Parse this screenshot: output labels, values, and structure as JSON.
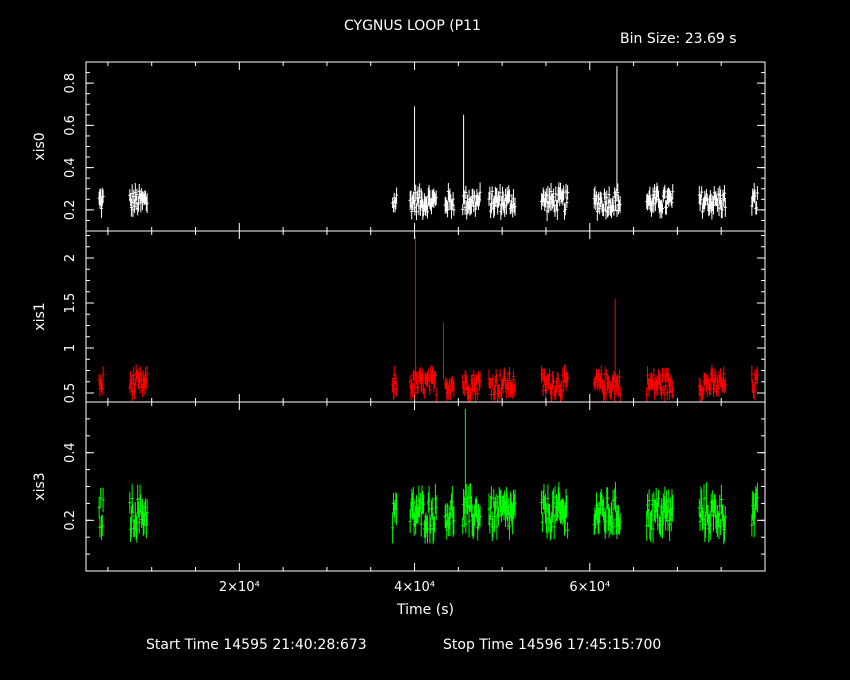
{
  "title": "CYGNUS LOOP (P11",
  "bin_label": "Bin Size: 23.69 s",
  "footer": {
    "start": "Start Time 14595 21:40:28:673",
    "stop": "Stop Time 14596 17:45:15:700"
  },
  "chart_data": {
    "type": "scatter",
    "xlabel": "Time (s)",
    "xlim": [
      2500,
      80000
    ],
    "xticks": [
      {
        "v": 20000,
        "label": "2×10⁴"
      },
      {
        "v": 40000,
        "label": "4×10⁴"
      },
      {
        "v": 60000,
        "label": "6×10⁴"
      }
    ],
    "segments": [
      [
        4000,
        4500
      ],
      [
        7500,
        9500
      ],
      [
        37500,
        38000
      ],
      [
        39500,
        42500
      ],
      [
        43500,
        44500
      ],
      [
        45500,
        47500
      ],
      [
        48500,
        51500
      ],
      [
        54500,
        57500
      ],
      [
        60500,
        63500
      ],
      [
        66500,
        69500
      ],
      [
        72500,
        75500
      ],
      [
        78500,
        79200
      ]
    ],
    "panels": [
      {
        "name": "xis0",
        "color": "#ffffff",
        "ylim": [
          0.1,
          0.9
        ],
        "yticks": [
          0.2,
          0.4,
          0.6,
          0.8
        ],
        "base": 0.24,
        "amp": 0.05,
        "err": 0.04,
        "spikes": [
          [
            40000,
            0.69
          ],
          [
            45600,
            0.65
          ],
          [
            63100,
            0.88
          ]
        ]
      },
      {
        "name": "xis1",
        "color": "#ff0000",
        "ylim": [
          0.4,
          2.3
        ],
        "yticks": [
          0.5,
          1,
          1.5,
          2
        ],
        "base": 0.6,
        "amp": 0.12,
        "err": 0.09,
        "spikes": [
          [
            40100,
            2.25
          ],
          [
            43300,
            1.28
          ],
          [
            62900,
            1.55
          ]
        ]
      },
      {
        "name": "xis3",
        "color": "#00ff00",
        "ylim": [
          0.05,
          0.55
        ],
        "yticks": [
          0.2,
          0.4
        ],
        "base": 0.22,
        "amp": 0.05,
        "err": 0.04,
        "spikes": [
          [
            45800,
            0.53
          ]
        ]
      }
    ]
  }
}
